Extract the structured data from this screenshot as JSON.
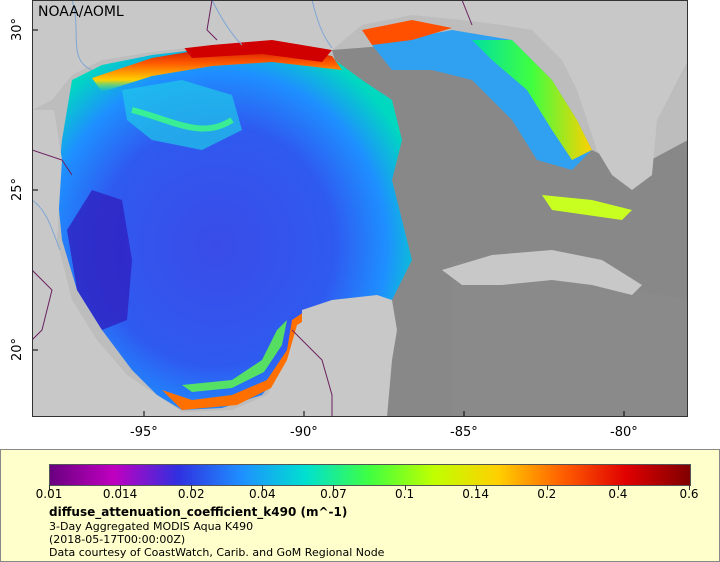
{
  "map": {
    "credit": "NOAA/AOML",
    "lat_ticks": [
      "30°",
      "25°",
      "20°"
    ],
    "lon_ticks": [
      "-95°",
      "-90°",
      "-85°",
      "-80°"
    ]
  },
  "legend": {
    "tick_labels": [
      "0.01",
      "0.014",
      "0.02",
      "0.04",
      "0.07",
      "0.1",
      "0.14",
      "0.2",
      "0.4",
      "0.6"
    ],
    "variable": "diffuse_attenuation_coefficient_k490 (m^-1)",
    "product": "3-Day Aggregated MODIS Aqua K490",
    "date": "(2018-05-17T00:00:00Z)",
    "source": "Data courtesy of CoastWatch, Carib. and GoM Regional Node"
  },
  "colors": {
    "land": "#bdbdbd",
    "no_data": "#888888",
    "legend_bg": "#ffffcc",
    "colorbar": [
      "#6a0080",
      "#c000c0",
      "#3030e0",
      "#1e90ff",
      "#00e0d0",
      "#40ff40",
      "#c0ff00",
      "#ffd000",
      "#ff6000",
      "#e00000",
      "#800000"
    ]
  }
}
